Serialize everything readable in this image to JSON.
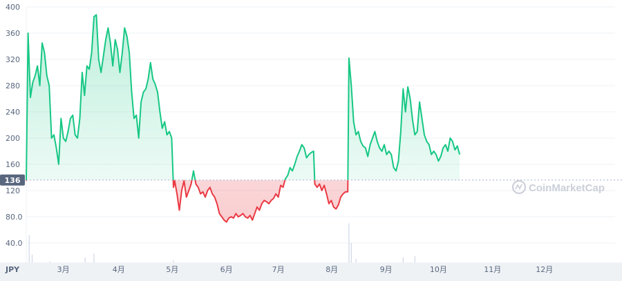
{
  "watermark": {
    "text": "CoinMarketCap"
  },
  "currency_label": "JPY",
  "colors": {
    "up": "#16c784",
    "down": "#ea3943",
    "up_fill": "#16c784",
    "down_fill": "#ea3943"
  },
  "chart_data": {
    "type": "line",
    "title": "",
    "xlabel": "",
    "ylabel": "",
    "ylim": [
      0,
      400
    ],
    "yticks": [
      "400",
      "360",
      "320",
      "280",
      "240",
      "200",
      "160",
      "120",
      "80.0",
      "40.0"
    ],
    "ytick_values": [
      400,
      360,
      320,
      280,
      240,
      200,
      160,
      120,
      80,
      40
    ],
    "x_range": [
      0,
      1
    ],
    "xticks": [
      {
        "label": "3月",
        "x": 0.063
      },
      {
        "label": "4月",
        "x": 0.157
      },
      {
        "label": "5月",
        "x": 0.248
      },
      {
        "label": "6月",
        "x": 0.34
      },
      {
        "label": "7月",
        "x": 0.428
      },
      {
        "label": "8月",
        "x": 0.519
      },
      {
        "label": "9月",
        "x": 0.611
      },
      {
        "label": "10月",
        "x": 0.7
      },
      {
        "label": "11月",
        "x": 0.792
      },
      {
        "label": "12月",
        "x": 0.88
      }
    ],
    "reference_value": 136,
    "reference_label": "136",
    "series": [
      {
        "values": [
          [
            0.0,
            135
          ],
          [
            0.003,
            360
          ],
          [
            0.007,
            262
          ],
          [
            0.011,
            285
          ],
          [
            0.015,
            295
          ],
          [
            0.019,
            310
          ],
          [
            0.023,
            280
          ],
          [
            0.027,
            345
          ],
          [
            0.031,
            330
          ],
          [
            0.035,
            295
          ],
          [
            0.039,
            280
          ],
          [
            0.043,
            200
          ],
          [
            0.047,
            205
          ],
          [
            0.051,
            185
          ],
          [
            0.055,
            160
          ],
          [
            0.059,
            230
          ],
          [
            0.063,
            200
          ],
          [
            0.067,
            195
          ],
          [
            0.071,
            210
          ],
          [
            0.075,
            230
          ],
          [
            0.079,
            235
          ],
          [
            0.083,
            205
          ],
          [
            0.087,
            200
          ],
          [
            0.091,
            230
          ],
          [
            0.095,
            300
          ],
          [
            0.099,
            265
          ],
          [
            0.103,
            310
          ],
          [
            0.107,
            305
          ],
          [
            0.111,
            330
          ],
          [
            0.115,
            385
          ],
          [
            0.119,
            388
          ],
          [
            0.123,
            320
          ],
          [
            0.127,
            300
          ],
          [
            0.131,
            325
          ],
          [
            0.135,
            350
          ],
          [
            0.139,
            368
          ],
          [
            0.143,
            345
          ],
          [
            0.147,
            310
          ],
          [
            0.151,
            350
          ],
          [
            0.155,
            335
          ],
          [
            0.159,
            300
          ],
          [
            0.163,
            330
          ],
          [
            0.167,
            368
          ],
          [
            0.171,
            355
          ],
          [
            0.175,
            330
          ],
          [
            0.179,
            270
          ],
          [
            0.183,
            230
          ],
          [
            0.187,
            235
          ],
          [
            0.191,
            200
          ],
          [
            0.195,
            255
          ],
          [
            0.199,
            270
          ],
          [
            0.203,
            275
          ],
          [
            0.207,
            290
          ],
          [
            0.211,
            315
          ],
          [
            0.215,
            290
          ],
          [
            0.219,
            282
          ],
          [
            0.223,
            270
          ],
          [
            0.227,
            240
          ],
          [
            0.231,
            215
          ],
          [
            0.235,
            225
          ],
          [
            0.239,
            205
          ],
          [
            0.243,
            210
          ],
          [
            0.247,
            200
          ],
          [
            0.25,
            125
          ],
          [
            0.252,
            135
          ],
          [
            0.256,
            115
          ],
          [
            0.26,
            90
          ],
          [
            0.264,
            120
          ],
          [
            0.268,
            135
          ],
          [
            0.272,
            110
          ],
          [
            0.276,
            120
          ],
          [
            0.28,
            130
          ],
          [
            0.284,
            150
          ],
          [
            0.288,
            130
          ],
          [
            0.292,
            125
          ],
          [
            0.296,
            115
          ],
          [
            0.3,
            118
          ],
          [
            0.304,
            110
          ],
          [
            0.308,
            120
          ],
          [
            0.312,
            125
          ],
          [
            0.316,
            115
          ],
          [
            0.32,
            110
          ],
          [
            0.324,
            100
          ],
          [
            0.328,
            85
          ],
          [
            0.332,
            80
          ],
          [
            0.336,
            75
          ],
          [
            0.34,
            72
          ],
          [
            0.344,
            78
          ],
          [
            0.348,
            80
          ],
          [
            0.352,
            78
          ],
          [
            0.356,
            85
          ],
          [
            0.36,
            80
          ],
          [
            0.364,
            82
          ],
          [
            0.368,
            85
          ],
          [
            0.372,
            80
          ],
          [
            0.376,
            78
          ],
          [
            0.38,
            82
          ],
          [
            0.384,
            75
          ],
          [
            0.388,
            85
          ],
          [
            0.392,
            95
          ],
          [
            0.396,
            90
          ],
          [
            0.4,
            100
          ],
          [
            0.404,
            105
          ],
          [
            0.408,
            103
          ],
          [
            0.412,
            100
          ],
          [
            0.416,
            105
          ],
          [
            0.42,
            108
          ],
          [
            0.424,
            115
          ],
          [
            0.428,
            110
          ],
          [
            0.432,
            128
          ],
          [
            0.436,
            125
          ],
          [
            0.44,
            138
          ],
          [
            0.444,
            143
          ],
          [
            0.448,
            155
          ],
          [
            0.452,
            150
          ],
          [
            0.456,
            160
          ],
          [
            0.46,
            172
          ],
          [
            0.464,
            180
          ],
          [
            0.468,
            190
          ],
          [
            0.472,
            185
          ],
          [
            0.476,
            170
          ],
          [
            0.48,
            175
          ],
          [
            0.484,
            178
          ],
          [
            0.488,
            180
          ],
          [
            0.49,
            130
          ],
          [
            0.494,
            125
          ],
          [
            0.498,
            130
          ],
          [
            0.502,
            120
          ],
          [
            0.506,
            128
          ],
          [
            0.51,
            115
          ],
          [
            0.514,
            100
          ],
          [
            0.518,
            105
          ],
          [
            0.522,
            95
          ],
          [
            0.526,
            92
          ],
          [
            0.53,
            98
          ],
          [
            0.534,
            110
          ],
          [
            0.538,
            115
          ],
          [
            0.542,
            118
          ],
          [
            0.546,
            118
          ],
          [
            0.548,
            322
          ],
          [
            0.552,
            280
          ],
          [
            0.556,
            225
          ],
          [
            0.56,
            205
          ],
          [
            0.564,
            210
          ],
          [
            0.568,
            195
          ],
          [
            0.572,
            188
          ],
          [
            0.576,
            185
          ],
          [
            0.58,
            172
          ],
          [
            0.584,
            190
          ],
          [
            0.588,
            200
          ],
          [
            0.592,
            210
          ],
          [
            0.596,
            195
          ],
          [
            0.6,
            185
          ],
          [
            0.604,
            180
          ],
          [
            0.608,
            190
          ],
          [
            0.612,
            175
          ],
          [
            0.616,
            180
          ],
          [
            0.62,
            175
          ],
          [
            0.624,
            155
          ],
          [
            0.628,
            150
          ],
          [
            0.632,
            165
          ],
          [
            0.636,
            210
          ],
          [
            0.64,
            275
          ],
          [
            0.644,
            240
          ],
          [
            0.648,
            278
          ],
          [
            0.652,
            260
          ],
          [
            0.656,
            228
          ],
          [
            0.66,
            205
          ],
          [
            0.664,
            210
          ],
          [
            0.668,
            255
          ],
          [
            0.672,
            230
          ],
          [
            0.676,
            205
          ],
          [
            0.68,
            195
          ],
          [
            0.684,
            190
          ],
          [
            0.688,
            175
          ],
          [
            0.692,
            180
          ],
          [
            0.696,
            175
          ],
          [
            0.7,
            165
          ],
          [
            0.704,
            172
          ],
          [
            0.708,
            185
          ],
          [
            0.712,
            190
          ],
          [
            0.716,
            180
          ],
          [
            0.72,
            200
          ],
          [
            0.724,
            195
          ],
          [
            0.728,
            182
          ],
          [
            0.732,
            188
          ],
          [
            0.736,
            175
          ]
        ]
      }
    ],
    "volume": [
      [
        0.005,
        52
      ],
      [
        0.01,
        22
      ],
      [
        0.04,
        12
      ],
      [
        0.06,
        10
      ],
      [
        0.08,
        9
      ],
      [
        0.1,
        18
      ],
      [
        0.115,
        24
      ],
      [
        0.145,
        10
      ],
      [
        0.2,
        9
      ],
      [
        0.25,
        14
      ],
      [
        0.3,
        8
      ],
      [
        0.4,
        7
      ],
      [
        0.48,
        8
      ],
      [
        0.548,
        70
      ],
      [
        0.552,
        40
      ],
      [
        0.56,
        16
      ],
      [
        0.6,
        10
      ],
      [
        0.64,
        18
      ],
      [
        0.66,
        20
      ],
      [
        0.7,
        10
      ],
      [
        0.73,
        9
      ]
    ]
  }
}
